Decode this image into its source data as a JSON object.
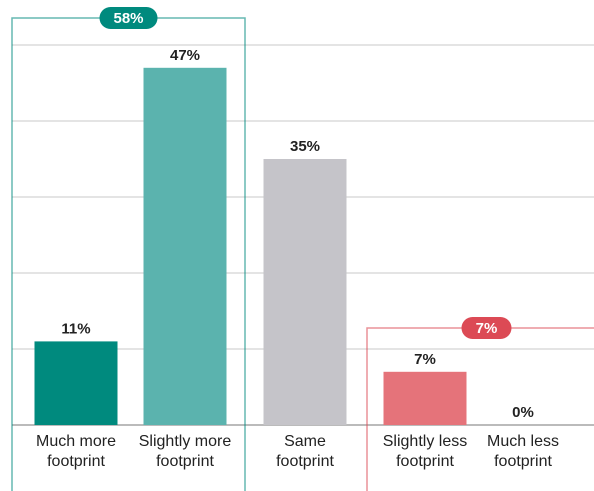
{
  "chart_data": {
    "type": "bar",
    "categories": [
      "Much more\nfootprint",
      "Slightly more\nfootprint",
      "Same\nfootprint",
      "Slightly less\nfootprint",
      "Much less\nfootprint"
    ],
    "values": [
      11,
      47,
      35,
      7,
      0
    ],
    "value_labels": [
      "11%",
      "47%",
      "35%",
      "7%",
      "0%"
    ],
    "colors": [
      "#008a7e",
      "#5bb3ae",
      "#c5c4c9",
      "#e5737a",
      "#c9303e"
    ],
    "ylim": [
      0,
      50
    ],
    "yticks": [
      0,
      10,
      20,
      30,
      40,
      50
    ],
    "grid": true,
    "annotations": [
      {
        "text": "58%",
        "color": "#008a7e",
        "categories": [
          0,
          1
        ]
      },
      {
        "text": "7%",
        "color": "#dc4a55",
        "categories": [
          3,
          4
        ]
      }
    ]
  }
}
